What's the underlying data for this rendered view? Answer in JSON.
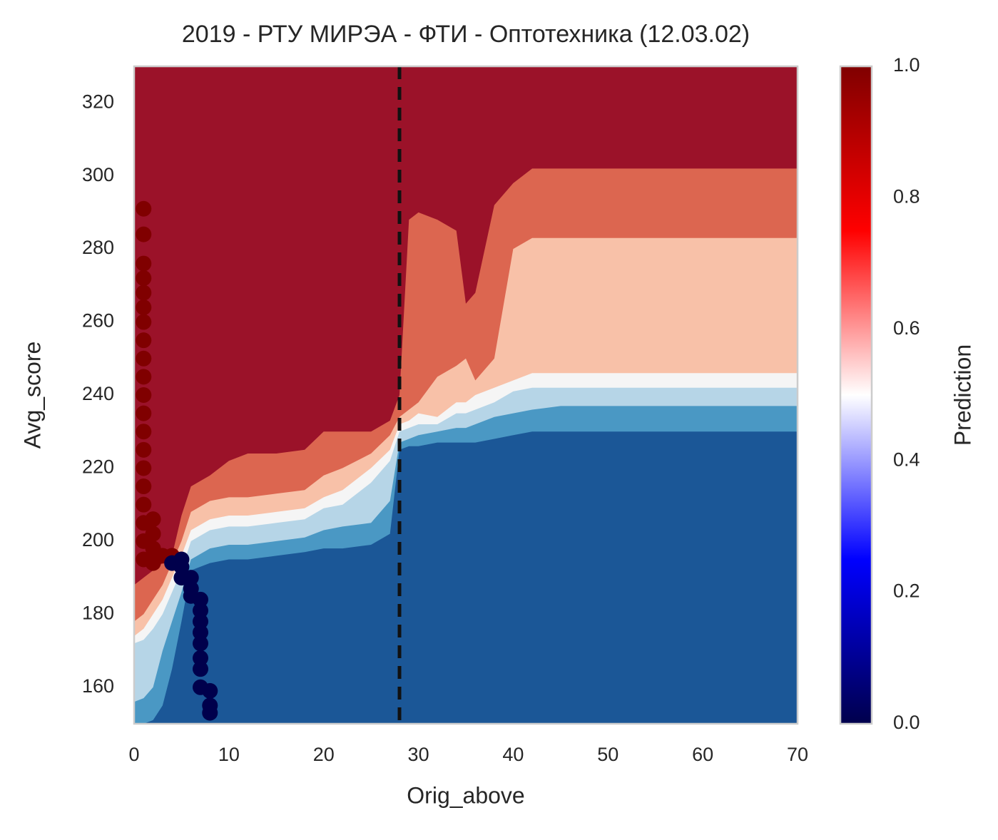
{
  "chart_data": {
    "type": "contour",
    "title": "2019 - РТУ МИРЭА - ФТИ - Оптотехника (12.03.02)",
    "xlabel": "Orig_above",
    "ylabel": "Avg_score",
    "xlim": [
      0,
      70
    ],
    "ylim": [
      150,
      330
    ],
    "xticks": [
      0,
      10,
      20,
      30,
      40,
      50,
      60,
      70
    ],
    "yticks": [
      160,
      180,
      200,
      220,
      240,
      260,
      280,
      300,
      320
    ],
    "contour": {
      "x": [
        0,
        1,
        2,
        3,
        4,
        5,
        6,
        8,
        10,
        12,
        15,
        18,
        20,
        22,
        25,
        27,
        28,
        29,
        30,
        32,
        34,
        35,
        36,
        38,
        40,
        42,
        45,
        50,
        55,
        60,
        65,
        70
      ],
      "colors": [
        "#1b5797",
        "#4a98c4",
        "#b6d5e7",
        "#f5f5f5",
        "#f8c1a8",
        "#dc6650",
        "#9b1229"
      ],
      "boundaries": [
        [
          150,
          150,
          151,
          155,
          165,
          178,
          192,
          194,
          195,
          195,
          196,
          197,
          198,
          198,
          199,
          202,
          225,
          226,
          226,
          227,
          227,
          227,
          227,
          228,
          229,
          230,
          230,
          230,
          230,
          230,
          230,
          230
        ],
        [
          156,
          157,
          160,
          170,
          178,
          186,
          195,
          198,
          199,
          199,
          200,
          201,
          203,
          204,
          205,
          211,
          227,
          228,
          229,
          230,
          231,
          231,
          232,
          234,
          235,
          236,
          237,
          237,
          237,
          237,
          237,
          237
        ],
        [
          172,
          173,
          176,
          180,
          186,
          192,
          200,
          203,
          204,
          204,
          205,
          206,
          209,
          210,
          216,
          222,
          230,
          231,
          232,
          232,
          235,
          235,
          236,
          238,
          241,
          242,
          242,
          242,
          242,
          242,
          242,
          242
        ],
        [
          174,
          176,
          180,
          184,
          190,
          196,
          203,
          206,
          207,
          207,
          208,
          209,
          212,
          214,
          220,
          225,
          232,
          233,
          235,
          234,
          238,
          238,
          240,
          242,
          244,
          246,
          246,
          246,
          246,
          246,
          246,
          246
        ],
        [
          178,
          180,
          184,
          188,
          194,
          200,
          208,
          211,
          212,
          212,
          213,
          214,
          218,
          220,
          224,
          229,
          234,
          236,
          238,
          245,
          248,
          250,
          244,
          250,
          280,
          283,
          283,
          283,
          283,
          283,
          283,
          283
        ],
        [
          188,
          190,
          192,
          194,
          196,
          207,
          215,
          218,
          222,
          224,
          224,
          225,
          230,
          230,
          230,
          233,
          240,
          288,
          290,
          288,
          285,
          265,
          268,
          292,
          298,
          302,
          302,
          302,
          302,
          302,
          302,
          302
        ]
      ]
    },
    "points": {
      "x": [
        1,
        1,
        1,
        1,
        1,
        1,
        1,
        1,
        1,
        1,
        1,
        1,
        1,
        1,
        1,
        1,
        1,
        1,
        1,
        1,
        2,
        2,
        2,
        2,
        3,
        4,
        4,
        5,
        5,
        5,
        6,
        6,
        6,
        7,
        7,
        7,
        7,
        7,
        7,
        7,
        7,
        8,
        8,
        8
      ],
      "y": [
        291,
        284,
        276,
        272,
        268,
        264,
        260,
        255,
        250,
        245,
        240,
        235,
        230,
        225,
        220,
        215,
        210,
        205,
        200,
        195,
        206,
        202,
        198,
        194,
        196,
        196,
        194,
        195,
        193,
        190,
        190,
        187,
        185,
        184,
        181,
        178,
        175,
        172,
        168,
        165,
        160,
        159,
        155,
        153
      ],
      "values": [
        1,
        1,
        1,
        1,
        1,
        1,
        1,
        1,
        1,
        1,
        1,
        1,
        1,
        1,
        1,
        1,
        1,
        1,
        1,
        1,
        1,
        1,
        1,
        1,
        1,
        1,
        0,
        0,
        0,
        0,
        0,
        0,
        0,
        0,
        0,
        0,
        0,
        0,
        0,
        0,
        0,
        0,
        0,
        0
      ]
    },
    "vline_x": 28,
    "colorbar": {
      "label": "Prediction",
      "lim": [
        0,
        1
      ],
      "ticks": [
        {
          "value": 0,
          "label": "0.0"
        },
        0.2,
        0.4,
        0.6,
        0.8,
        {
          "value": 1,
          "label": "1.0"
        }
      ],
      "colormap": [
        "#00004c",
        "#0000ff",
        "#ffffff",
        "#ff0000",
        "#800000"
      ]
    }
  }
}
